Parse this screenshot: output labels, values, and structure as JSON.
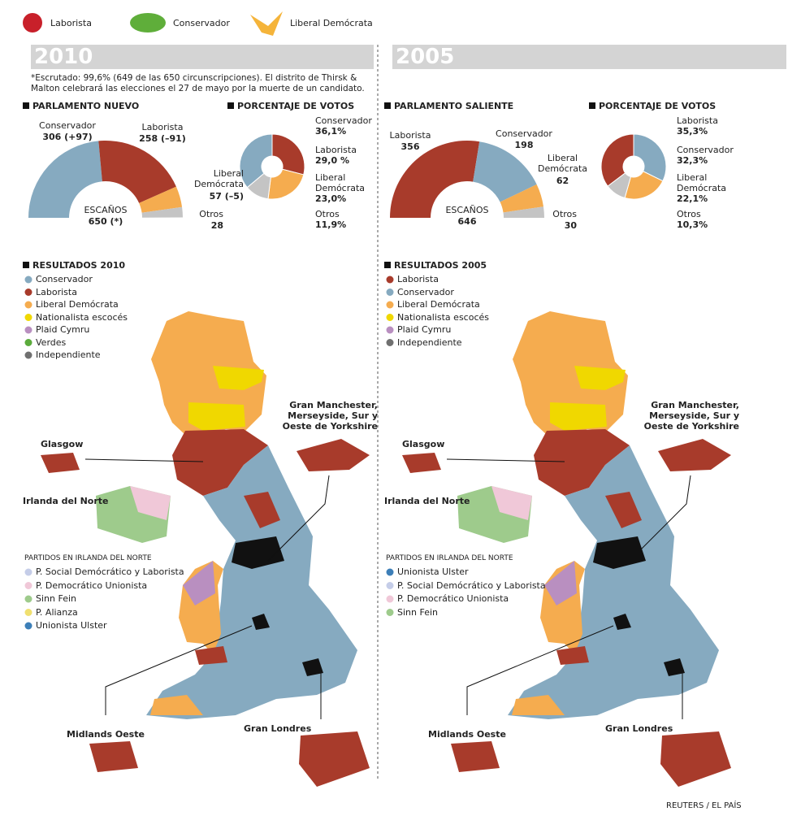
{
  "legend": [
    {
      "name": "Laborista",
      "color": "#a83b2b"
    },
    {
      "name": "Conservador",
      "color": "#5fae3a"
    },
    {
      "name": "Liberal Demócrata",
      "color": "#f5b43a"
    }
  ],
  "source": "REUTERS / EL PAÍS",
  "panels": [
    {
      "year": "2010",
      "note": "*Escrutado: 99,6% (649 de las 650 circunscripciones). El distrito de Thirsk & Malton celebrará las elecciones el 27 de mayo por la muerte de un candidato.",
      "seats": {
        "title": "PARLAMENTO NUEVO",
        "total_label": "ESCAÑOS",
        "total": 650,
        "total_value_label": "650 (*)",
        "parties": [
          {
            "name": "Conservador",
            "value": 306,
            "value_label": "306 (+97)",
            "color": "#86aac0"
          },
          {
            "name": "Laborista",
            "value": 258,
            "value_label": "258 (–91)",
            "color": "#a83b2b"
          },
          {
            "name": "Liberal Demócrata",
            "value": 57,
            "value_label": "57 (–5)",
            "color": "#f5ac4f"
          },
          {
            "name": "Otros",
            "value": 28,
            "value_label": "28",
            "color": "#c4c4c4"
          }
        ]
      },
      "votes": {
        "title": "PORCENTAJE DE VOTOS",
        "parties": [
          {
            "name": "Conservador",
            "value": 36.1,
            "value_label": "36,1%",
            "color": "#86aac0"
          },
          {
            "name": "Laborista",
            "value": 29.0,
            "value_label": "29,0 %",
            "color": "#a83b2b"
          },
          {
            "name": "Liberal Demócrata",
            "value": 23.0,
            "value_label": "23,0%",
            "color": "#f5ac4f"
          },
          {
            "name": "Otros",
            "value": 11.9,
            "value_label": "11,9%",
            "color": "#c4c4c4"
          }
        ]
      },
      "results": {
        "title": "RESULTADOS 2010",
        "parties": [
          {
            "name": "Conservador",
            "color": "#86aac0"
          },
          {
            "name": "Laborista",
            "color": "#a83b2b"
          },
          {
            "name": "Liberal Demócrata",
            "color": "#f5ac4f"
          },
          {
            "name": "Nationalista escocés",
            "color": "#f0d800"
          },
          {
            "name": "Plaid Cymru",
            "color": "#b98fc0"
          },
          {
            "name": "Verdes",
            "color": "#5bab3c"
          },
          {
            "name": "Independiente",
            "color": "#707070"
          }
        ]
      },
      "map_labels": [
        "Glasgow",
        "Irlanda del Norte",
        "Gran Manchester, Merseyside, Sur y Oeste de Yorkshire",
        "Midlands Oeste",
        "Gran Londres"
      ],
      "ni": {
        "title": "PARTIDOS EN IRLANDA DEL NORTE",
        "parties": [
          {
            "name": "P. Social Demócrático y Laborista",
            "color": "#c5cde8"
          },
          {
            "name": "P. Democrático Unionista",
            "color": "#f0c8d8"
          },
          {
            "name": "Sinn Fein",
            "color": "#9ecb8c"
          },
          {
            "name": "P. Alianza",
            "color": "#f0e070"
          },
          {
            "name": "Unionista Ulster",
            "color": "#3d7fb8"
          }
        ]
      }
    },
    {
      "year": "2005",
      "seats": {
        "title": "PARLAMENTO SALIENTE",
        "total_label": "ESCAÑOS",
        "total": 646,
        "total_value_label": "646",
        "parties": [
          {
            "name": "Laborista",
            "value": 356,
            "value_label": "356",
            "color": "#a83b2b"
          },
          {
            "name": "Conservador",
            "value": 198,
            "value_label": "198",
            "color": "#86aac0"
          },
          {
            "name": "Liberal Demócrata",
            "value": 62,
            "value_label": "62",
            "color": "#f5ac4f"
          },
          {
            "name": "Otros",
            "value": 30,
            "value_label": "30",
            "color": "#c4c4c4"
          }
        ]
      },
      "votes": {
        "title": "PORCENTAJE DE VOTOS",
        "parties": [
          {
            "name": "Laborista",
            "value": 35.3,
            "value_label": "35,3%",
            "color": "#a83b2b"
          },
          {
            "name": "Conservador",
            "value": 32.3,
            "value_label": "32,3%",
            "color": "#86aac0"
          },
          {
            "name": "Liberal Demócrata",
            "value": 22.1,
            "value_label": "22,1%",
            "color": "#f5ac4f"
          },
          {
            "name": "Otros",
            "value": 10.3,
            "value_label": "10,3%",
            "color": "#c4c4c4"
          }
        ]
      },
      "results": {
        "title": "RESULTADOS 2005",
        "parties": [
          {
            "name": "Laborista",
            "color": "#a83b2b"
          },
          {
            "name": "Conservador",
            "color": "#86aac0"
          },
          {
            "name": "Liberal Demócrata",
            "color": "#f5ac4f"
          },
          {
            "name": "Nationalista escocés",
            "color": "#f0d800"
          },
          {
            "name": "Plaid Cymru",
            "color": "#b98fc0"
          },
          {
            "name": "Independiente",
            "color": "#707070"
          }
        ]
      },
      "map_labels": [
        "Glasgow",
        "Irlanda del Norte",
        "Gran Manchester, Merseyside, Sur y Oeste de Yorkshire",
        "Midlands Oeste",
        "Gran Londres"
      ],
      "ni": {
        "title": "PARTIDOS EN IRLANDA DEL NORTE",
        "parties": [
          {
            "name": "Unionista Ulster",
            "color": "#3d7fb8"
          },
          {
            "name": "P. Social Demócrático y Laborista",
            "color": "#c5cde8"
          },
          {
            "name": "P. Democrático Unionista",
            "color": "#f0c8d8"
          },
          {
            "name": "Sinn Fein",
            "color": "#9ecb8c"
          }
        ]
      }
    }
  ]
}
